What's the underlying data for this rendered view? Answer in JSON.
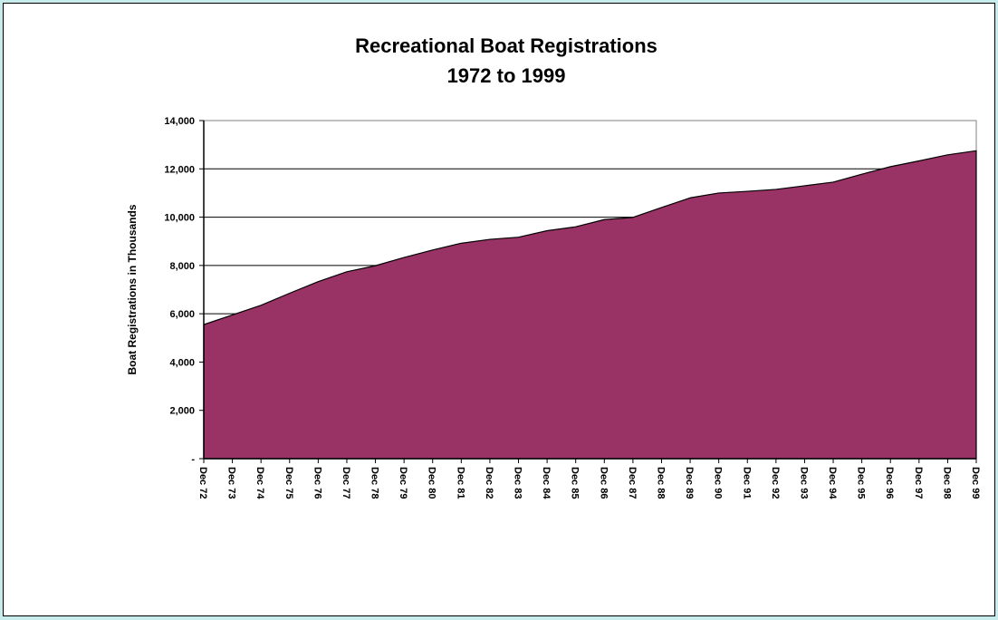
{
  "chart_data": {
    "type": "area",
    "title": "Recreational Boat Registrations",
    "subtitle": "1972 to 1999",
    "xlabel": "",
    "ylabel": "Boat Registrations in Thousands",
    "ylim": [
      0,
      14000
    ],
    "yticks": [
      0,
      2000,
      4000,
      6000,
      8000,
      10000,
      12000,
      14000
    ],
    "ytick_labels": [
      "-",
      "2,000",
      "4,000",
      "6,000",
      "8,000",
      "10,000",
      "12,000",
      "14,000"
    ],
    "grid": true,
    "legend": "none",
    "categories": [
      "Dec 72",
      "Dec 73",
      "Dec 74",
      "Dec 75",
      "Dec 76",
      "Dec 77",
      "Dec 78",
      "Dec 79",
      "Dec 80",
      "Dec 81",
      "Dec 82",
      "Dec 83",
      "Dec 84",
      "Dec 85",
      "Dec 86",
      "Dec 87",
      "Dec 88",
      "Dec 89",
      "Dec 90",
      "Dec 91",
      "Dec 92",
      "Dec 93",
      "Dec 94",
      "Dec 95",
      "Dec 96",
      "Dec 97",
      "Dec 98",
      "Dec 99"
    ],
    "series": [
      {
        "values": [
          5550,
          5950,
          6350,
          6850,
          7330,
          7740,
          7990,
          8330,
          8640,
          8920,
          9080,
          9170,
          9440,
          9600,
          9900,
          9990,
          10400,
          10800,
          11000,
          11070,
          11150,
          11300,
          11450,
          11780,
          12090,
          12330,
          12580,
          12750
        ],
        "color": "#993366"
      }
    ]
  }
}
